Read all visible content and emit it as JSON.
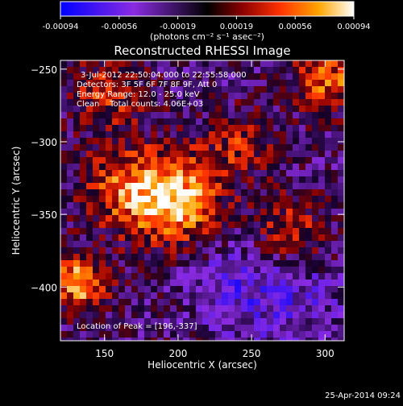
{
  "chart_data": {
    "type": "heatmap",
    "title": "Reconstructed RHESSI Image",
    "xlabel": "Heliocentric X (arcsec)",
    "ylabel": "Heliocentric Y (arcsec)",
    "xlim": [
      120,
      313
    ],
    "ylim": [
      -437,
      -244
    ],
    "x_ticks": [
      150,
      200,
      250,
      300
    ],
    "y_ticks": [
      -250,
      -300,
      -350,
      -400
    ],
    "colorbar": {
      "unit_label": "(photons cm⁻² s⁻¹ asec⁻²)",
      "ticks": [
        "-0.00094",
        "-0.00056",
        "-0.00019",
        "0.00019",
        "0.00056",
        "0.00094"
      ],
      "range": [
        -0.00094,
        0.00094
      ]
    },
    "annotations": {
      "time_range": "3-Jul-2012 22:50:04.000 to 22:55:58.000",
      "detectors": "Detectors: 3F 5F 6F 7F 8F 9F, Att 0",
      "energy_range": "Energy Range: 12.0 - 25.0 keV",
      "clean_counts": "Clean    Total counts: 4.06E+03",
      "peak_location": "Location of Peak = [196,-337]"
    },
    "peak": {
      "x": 196,
      "y": -337
    },
    "grid": false
  },
  "footer": {
    "timestamp": "25-Apr-2014 09:24"
  }
}
